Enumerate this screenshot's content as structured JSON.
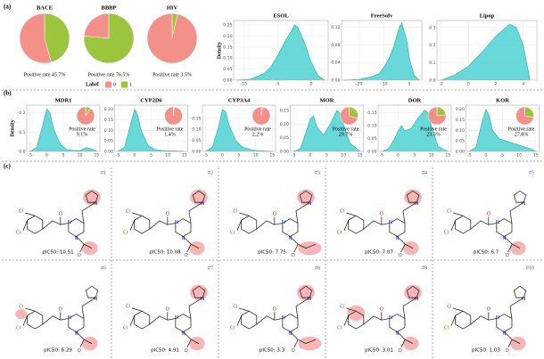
{
  "panel_labels": [
    "(a)",
    "(b)",
    "(c)"
  ],
  "legend": {
    "title": "Label",
    "entries": [
      "0",
      "1"
    ]
  },
  "atom_symbols": {
    "chlorine": "Cl",
    "nitrogen": "N",
    "oxygen": "O"
  },
  "chart_data": [
    {
      "type": "pie",
      "title": "BACE",
      "categories": [
        "0",
        "1"
      ],
      "values": [
        54.3,
        45.7
      ],
      "colors": [
        "#f4908a",
        "#9bc53d"
      ],
      "caption": "Positive rate 45.7%"
    },
    {
      "type": "pie",
      "title": "BBBP",
      "categories": [
        "0",
        "1"
      ],
      "values": [
        23.5,
        76.5
      ],
      "colors": [
        "#f4908a",
        "#9bc53d"
      ],
      "caption": "Positive rate 76.5%"
    },
    {
      "type": "pie",
      "title": "HIV",
      "categories": [
        "0",
        "1"
      ],
      "values": [
        96.5,
        3.5
      ],
      "colors": [
        "#f4908a",
        "#9bc53d"
      ],
      "caption": "Positive rate 3.5%"
    },
    {
      "type": "density",
      "title": "ESOL",
      "ylabel": "Density",
      "color": "#4fd1d1",
      "line_color": "#26a9a9",
      "x": [
        -11,
        -9,
        -7,
        -6,
        -5,
        -4,
        -3,
        -2.5,
        -2,
        -1,
        0,
        1,
        2
      ],
      "values": [
        0,
        0.005,
        0.03,
        0.06,
        0.11,
        0.17,
        0.22,
        0.25,
        0.24,
        0.17,
        0.08,
        0.02,
        0
      ],
      "xlim": [
        -11.5,
        2.5
      ],
      "xticks": [
        -10,
        -5,
        0
      ],
      "ylim": [
        0,
        0.27
      ],
      "yticks": [
        {
          "value": 0,
          "label": "0.00"
        },
        0.05,
        {
          "value": 0.1,
          "label": "0.10"
        },
        0.15,
        {
          "value": 0.2,
          "label": "0.20"
        },
        0.25
      ]
    },
    {
      "type": "density",
      "title": "FreeSolv",
      "color": "#4fd1d1",
      "line_color": "#26a9a9",
      "x": [
        -26,
        -20,
        -15,
        -12,
        -10,
        -8,
        -6,
        -4,
        -3,
        -2,
        -1,
        0,
        2,
        4
      ],
      "values": [
        0,
        0.002,
        0.008,
        0.015,
        0.03,
        0.05,
        0.08,
        0.12,
        0.13,
        0.11,
        0.09,
        0.05,
        0.01,
        0
      ],
      "xlim": [
        -27,
        5
      ],
      "xticks": [
        -20,
        -10,
        0
      ],
      "ylim": [
        0,
        0.135
      ],
      "yticks": [
        {
          "value": 0,
          "label": "0.00"
        },
        0.04,
        0.08,
        0.12
      ]
    },
    {
      "type": "density",
      "title": "Lipop",
      "color": "#4fd1d1",
      "line_color": "#26a9a9",
      "x": [
        -2,
        -1,
        0,
        1,
        2,
        3,
        3.5,
        4,
        4.5
      ],
      "values": [
        0,
        0.03,
        0.08,
        0.16,
        0.25,
        0.32,
        0.3,
        0.2,
        0
      ],
      "xlim": [
        -2.3,
        5
      ],
      "xticks": [
        -2,
        0,
        2,
        4
      ],
      "ylim": [
        0,
        0.34
      ],
      "yticks": [
        {
          "value": 0,
          "label": "0.0"
        },
        0.1,
        0.2,
        0.3
      ]
    },
    {
      "type": "density",
      "title": "MDR1",
      "ylabel": "Density",
      "color": "#4fd1d1",
      "line_color": "#26a9a9",
      "x": [
        -5,
        -3,
        -1,
        0,
        1,
        2,
        4,
        6,
        8,
        10,
        12,
        14,
        15
      ],
      "values": [
        0,
        0.02,
        0.15,
        0.22,
        0.2,
        0.12,
        0.04,
        0.01,
        0.005,
        0.005,
        0.02,
        0.01,
        0
      ],
      "xlim": [
        -6,
        16
      ],
      "xticks": [
        -5,
        0,
        5,
        10,
        15
      ],
      "ylim": [
        0,
        0.24
      ],
      "yticks": [
        {
          "value": 0,
          "label": "0.0"
        },
        0.1,
        0.2
      ],
      "inset": {
        "type": "pie",
        "values": [
          90.9,
          9.1
        ],
        "colors": [
          "#f4908a",
          "#9bc53d"
        ],
        "caption": [
          "Positive rate",
          "9.1%"
        ]
      }
    },
    {
      "type": "density",
      "title": "CYP2D6",
      "color": "#4fd1d1",
      "line_color": "#26a9a9",
      "x": [
        -5,
        -3,
        -1,
        0,
        1,
        2,
        4,
        6,
        8,
        10,
        12,
        14,
        15
      ],
      "values": [
        0,
        0.02,
        0.14,
        0.2,
        0.17,
        0.1,
        0.03,
        0.01,
        0.005,
        0.003,
        0.002,
        0.001,
        0
      ],
      "xlim": [
        -6,
        16
      ],
      "xticks": [
        -5,
        0,
        5,
        10,
        15
      ],
      "ylim": [
        0,
        0.22
      ],
      "yticks": [
        {
          "value": 0,
          "label": "0.00"
        },
        0.05,
        {
          "value": 0.1,
          "label": "0.10"
        },
        0.15,
        {
          "value": 0.2,
          "label": "0.20"
        }
      ],
      "inset": {
        "type": "pie",
        "values": [
          98.6,
          1.4
        ],
        "colors": [
          "#f4908a",
          "#9bc53d"
        ],
        "caption": [
          "Positive rate",
          "1.4%"
        ]
      }
    },
    {
      "type": "density",
      "title": "CYP3A4",
      "color": "#4fd1d1",
      "line_color": "#26a9a9",
      "x": [
        -5,
        -3,
        -1,
        0,
        1,
        2,
        4,
        6,
        8,
        10,
        12,
        14,
        15
      ],
      "values": [
        0,
        0.02,
        0.12,
        0.19,
        0.18,
        0.12,
        0.05,
        0.02,
        0.01,
        0.005,
        0.003,
        0.001,
        0
      ],
      "xlim": [
        -6,
        16
      ],
      "xticks": [
        -5,
        0,
        5,
        10,
        15
      ],
      "ylim": [
        0,
        0.21
      ],
      "yticks": [
        {
          "value": 0,
          "label": "0.00"
        },
        0.05,
        {
          "value": 0.1,
          "label": "0.10"
        },
        0.15
      ],
      "inset": {
        "type": "pie",
        "values": [
          97.8,
          2.2
        ],
        "colors": [
          "#f4908a",
          "#9bc53d"
        ],
        "caption": [
          "Positive rate",
          "2.2%"
        ]
      }
    },
    {
      "type": "density",
      "title": "MOR",
      "color": "#4fd1d1",
      "line_color": "#26a9a9",
      "x": [
        -5,
        -3,
        -1,
        0,
        1,
        2,
        4,
        6,
        8,
        9,
        10,
        12,
        15
      ],
      "values": [
        0,
        0.01,
        0.08,
        0.12,
        0.13,
        0.09,
        0.06,
        0.1,
        0.15,
        0.14,
        0.1,
        0.03,
        0
      ],
      "xlim": [
        -6,
        16
      ],
      "xticks": [
        -5,
        0,
        5,
        10,
        15
      ],
      "ylim": [
        0,
        0.17
      ],
      "yticks": [
        {
          "value": 0,
          "label": "0.00"
        },
        0.05,
        {
          "value": 0.1,
          "label": "0.10"
        },
        0.15
      ],
      "inset": {
        "type": "pie",
        "values": [
          70.3,
          29.7
        ],
        "colors": [
          "#f4908a",
          "#9bc53d"
        ],
        "caption": [
          "Positive rate",
          "29.7%"
        ]
      }
    },
    {
      "type": "density",
      "title": "DOR",
      "color": "#4fd1d1",
      "line_color": "#26a9a9",
      "x": [
        -5,
        -3,
        -1,
        0,
        1,
        2,
        4,
        6,
        8,
        9,
        10,
        12,
        15
      ],
      "values": [
        0,
        0.01,
        0.05,
        0.08,
        0.1,
        0.08,
        0.09,
        0.13,
        0.16,
        0.15,
        0.1,
        0.02,
        0
      ],
      "xlim": [
        -6,
        16
      ],
      "xticks": [
        -5,
        0,
        5,
        10,
        15
      ],
      "ylim": [
        0,
        0.18
      ],
      "yticks": [
        {
          "value": 0,
          "label": "0.00"
        },
        0.05,
        {
          "value": 0.1,
          "label": "0.10"
        },
        0.15
      ],
      "inset": {
        "type": "pie",
        "values": [
          76.7,
          23.3
        ],
        "colors": [
          "#f4908a",
          "#9bc53d"
        ],
        "caption": [
          "Positive rate",
          "23.3%"
        ]
      }
    },
    {
      "type": "density",
      "title": "KOR",
      "color": "#4fd1d1",
      "line_color": "#26a9a9",
      "x": [
        -5,
        -3,
        -1,
        0,
        1,
        2,
        4,
        6,
        8,
        10,
        12,
        14,
        15
      ],
      "values": [
        0,
        0.02,
        0.15,
        0.2,
        0.17,
        0.1,
        0.06,
        0.05,
        0.04,
        0.03,
        0.02,
        0.01,
        0
      ],
      "xlim": [
        -6,
        16
      ],
      "xticks": [
        -5,
        0,
        5,
        10,
        15
      ],
      "ylim": [
        0,
        0.22
      ],
      "yticks": [
        {
          "value": 0,
          "label": "0.00"
        },
        0.05,
        {
          "value": 0.1,
          "label": "0.10"
        },
        0.15,
        {
          "value": 0.2,
          "label": "0.20"
        }
      ],
      "inset": {
        "type": "pie",
        "values": [
          72.2,
          27.8
        ],
        "colors": [
          "#f4908a",
          "#9bc53d"
        ],
        "caption": [
          "Positive rate",
          "27.8%"
        ]
      }
    }
  ],
  "molecules": [
    {
      "id": "#1",
      "label": "pIC50: 10.51"
    },
    {
      "id": "#2",
      "label": "pIC50: 10.08"
    },
    {
      "id": "#3",
      "label": "pIC50: 7.75"
    },
    {
      "id": "#4",
      "label": "pIC50: 7.07"
    },
    {
      "id": "#5",
      "label": "pIC50: 6.7"
    },
    {
      "id": "#6",
      "label": "pIC50: 6.29"
    },
    {
      "id": "#7",
      "label": "pIC50: 4.91"
    },
    {
      "id": "#8",
      "label": "pIC50: 3.3"
    },
    {
      "id": "#9",
      "label": "pIC50: 3.01"
    },
    {
      "id": "#10",
      "label": "pIC50: 1.03"
    }
  ]
}
